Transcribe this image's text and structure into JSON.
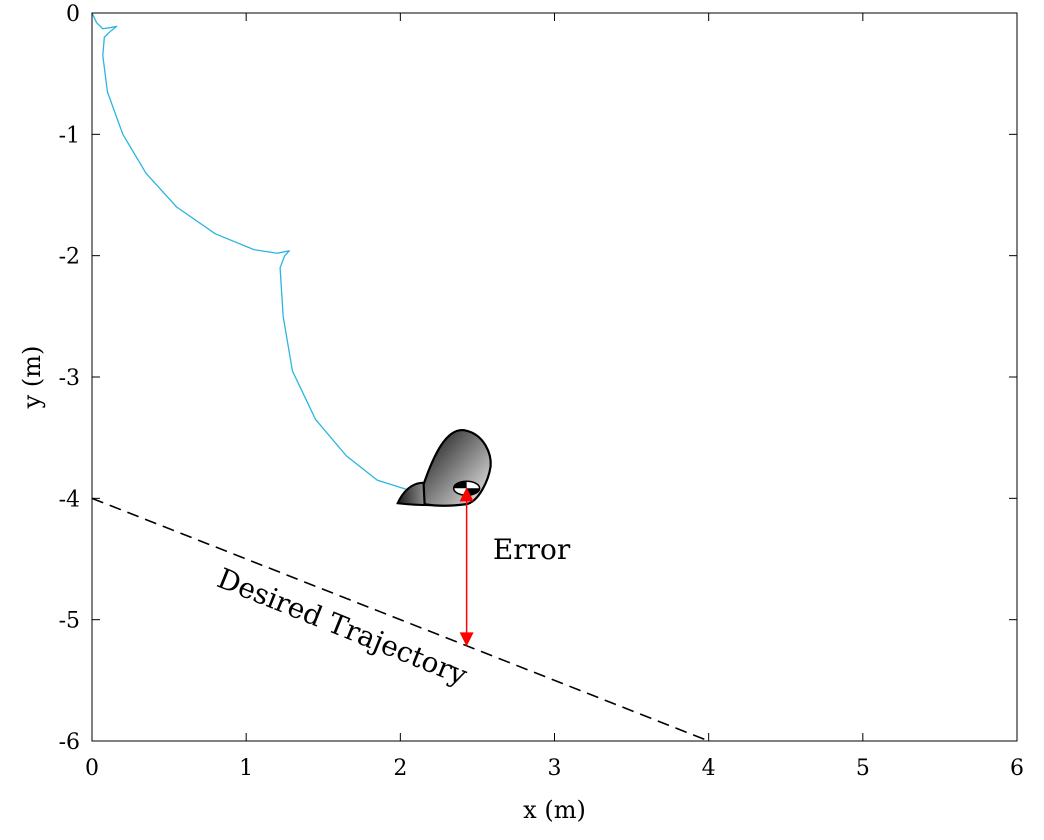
{
  "chart_data": {
    "type": "line",
    "title": "",
    "xlabel": "x (m)",
    "ylabel": "y (m)",
    "xlim": [
      0,
      6
    ],
    "ylim": [
      -6,
      0
    ],
    "xticks": [
      0,
      1,
      2,
      3,
      4,
      5,
      6
    ],
    "yticks": [
      0,
      -1,
      -2,
      -3,
      -4,
      -5,
      -6
    ],
    "grid": false,
    "colors": {
      "path": "#29b6e0",
      "desired": "#000000",
      "error": "#ff0000",
      "axes": "#000000"
    },
    "series": [
      {
        "style": "solid",
        "x": [
          0.0,
          0.03,
          0.07,
          0.12,
          0.16,
          0.12,
          0.08,
          0.07,
          0.1,
          0.2,
          0.35,
          0.55,
          0.8,
          1.05,
          1.2,
          1.28,
          1.25,
          1.22,
          1.24,
          1.3,
          1.45,
          1.65,
          1.85,
          2.05
        ],
        "y": [
          0.0,
          -0.08,
          -0.13,
          -0.12,
          -0.11,
          -0.15,
          -0.2,
          -0.35,
          -0.65,
          -1.0,
          -1.32,
          -1.6,
          -1.82,
          -1.95,
          -1.98,
          -1.96,
          -2.0,
          -2.1,
          -2.5,
          -2.95,
          -3.35,
          -3.65,
          -3.85,
          -3.93
        ]
      },
      {
        "style": "dashed",
        "x": [
          0,
          4
        ],
        "y": [
          -4,
          -6
        ]
      }
    ],
    "annotations": [
      {
        "text": "Desired Trajectory",
        "x": 0.8,
        "y": -4.72,
        "rotation_deg": 22
      },
      {
        "text": "Error",
        "x": 2.6,
        "y": -4.5
      }
    ],
    "error_arrow": {
      "x": 2.43,
      "y_from": -3.91,
      "y_to": -5.22
    },
    "robot_marker": {
      "x": 2.43,
      "y": -3.95,
      "icon": "snake-robot-icon"
    }
  }
}
